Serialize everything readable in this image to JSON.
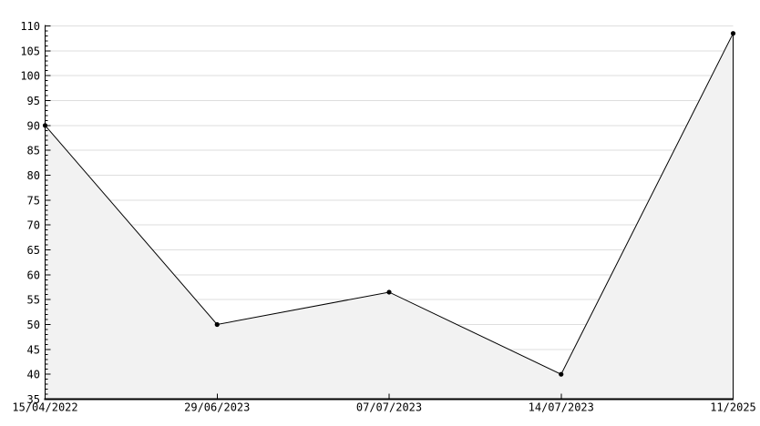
{
  "chart_data": {
    "type": "area",
    "title": "",
    "x_labels": [
      "15/04/2022",
      "29/06/2023",
      "07/07/2023",
      "14/07/2023",
      "11/2025"
    ],
    "values": [
      90,
      50,
      56.5,
      40,
      108.5
    ],
    "ylim": [
      35,
      110
    ],
    "ytick_step": 5,
    "y_minor_step": 1,
    "y_tick_labels": [
      "35",
      "40",
      "45",
      "50",
      "55",
      "60",
      "65",
      "70",
      "75",
      "80",
      "85",
      "90",
      "95",
      "100",
      "105",
      "110"
    ],
    "grid": "horizontal",
    "legend_position": "none",
    "marker": "dot",
    "colors": {
      "line": "#000000",
      "fill": "#f2f2f2",
      "grid": "#dedede",
      "axis": "#000000",
      "text": "#000000",
      "background": "#ffffff"
    }
  }
}
